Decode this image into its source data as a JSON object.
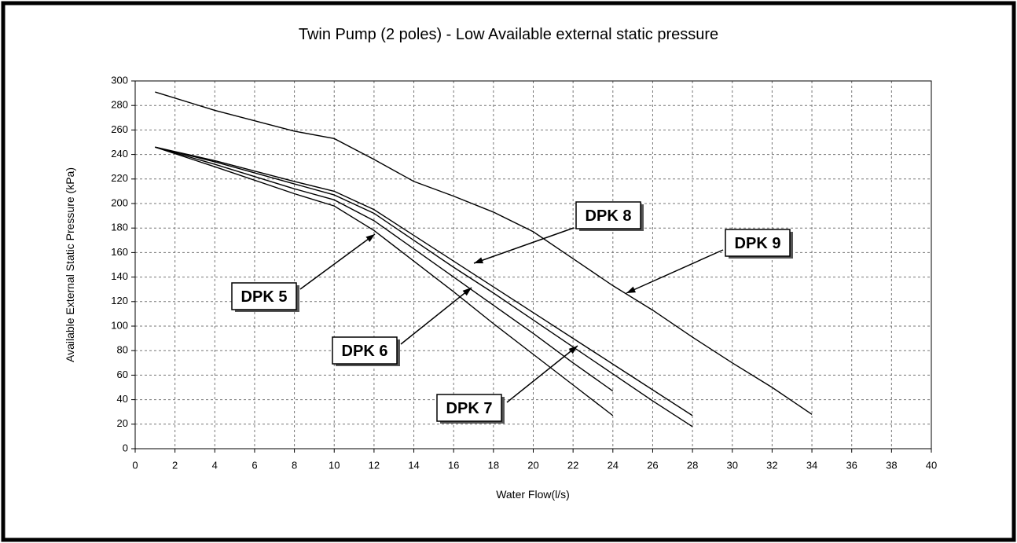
{
  "chart_data": {
    "type": "line",
    "title": "Twin Pump (2 poles) - Low Available external static pressure",
    "xlabel": "Water Flow(l/s)",
    "ylabel": "Available External Static Pressure (kPa)",
    "xlim": [
      0,
      40
    ],
    "ylim": [
      0,
      300
    ],
    "xticks": [
      0,
      2,
      4,
      6,
      8,
      10,
      12,
      14,
      16,
      18,
      20,
      22,
      24,
      26,
      28,
      30,
      32,
      34,
      36,
      38,
      40
    ],
    "yticks": [
      0,
      20,
      40,
      60,
      80,
      100,
      120,
      140,
      160,
      180,
      200,
      220,
      240,
      260,
      280,
      300
    ],
    "grid": true,
    "series": [
      {
        "name": "DPK 9",
        "color": "#000000",
        "x": [
          1,
          4,
          8,
          10,
          12,
          14,
          16,
          18,
          20,
          22,
          24,
          26,
          28,
          30,
          32,
          34
        ],
        "values": [
          291,
          276,
          259,
          253,
          236,
          218,
          206,
          193,
          177,
          155,
          133,
          113,
          91,
          70,
          50,
          28
        ]
      },
      {
        "name": "DPK 8",
        "color": "#000000",
        "x": [
          1,
          4,
          8,
          10,
          12,
          14,
          16,
          18,
          20,
          22,
          24,
          26,
          28
        ],
        "values": [
          246,
          235,
          218,
          210,
          195,
          174,
          153,
          132,
          111,
          90,
          69,
          48,
          27
        ]
      },
      {
        "name": "DPK 7",
        "color": "#000000",
        "x": [
          1,
          4,
          8,
          10,
          12,
          14,
          16,
          18,
          20,
          22,
          24,
          26,
          28
        ],
        "values": [
          246,
          234,
          216,
          207,
          192,
          170,
          148,
          127,
          105,
          83,
          61,
          39,
          18
        ]
      },
      {
        "name": "DPK 6",
        "color": "#000000",
        "x": [
          1,
          4,
          8,
          10,
          12,
          14,
          16,
          18,
          20,
          22,
          24
        ],
        "values": [
          246,
          232,
          212,
          203,
          186,
          163,
          140,
          117,
          94,
          70,
          47
        ]
      },
      {
        "name": "DPK 5",
        "color": "#000000",
        "x": [
          1,
          4,
          8,
          10,
          12,
          14,
          16,
          18,
          20,
          22,
          24
        ],
        "values": [
          246,
          230,
          208,
          198,
          178,
          153,
          128,
          102,
          77,
          52,
          27
        ]
      }
    ]
  }
}
